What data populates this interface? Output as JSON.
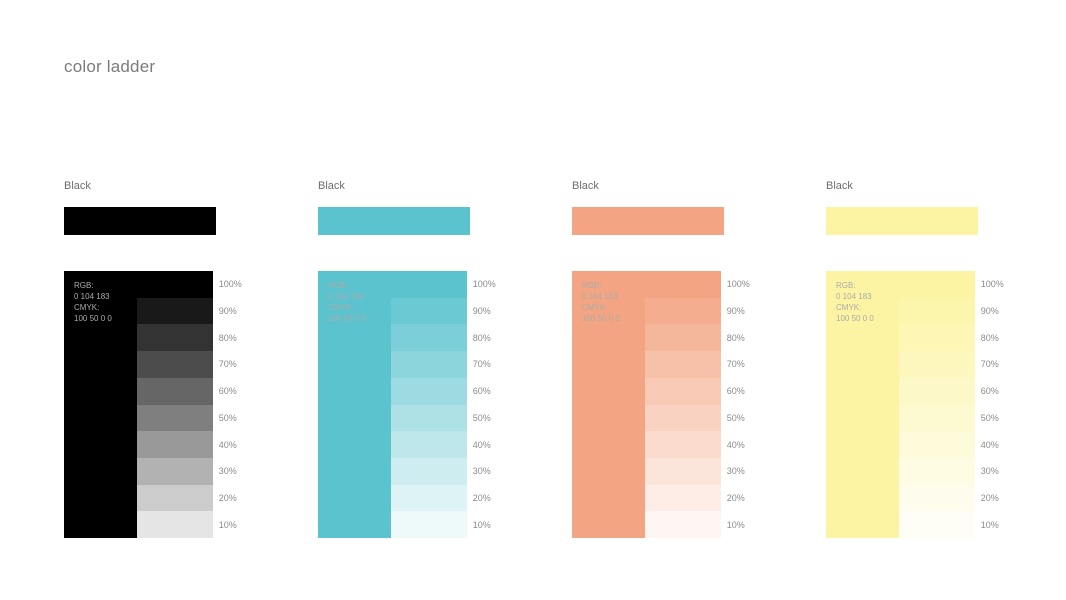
{
  "page": {
    "title": "color ladder",
    "background": "#ffffff"
  },
  "swatch_info": {
    "rgb_label": "RGB:",
    "rgb_value": "0 104 183",
    "cmyk_label": "CMYK:",
    "cmyk_value": "100 50 0 0"
  },
  "ladder": {
    "percents": [
      100,
      90,
      80,
      70,
      60,
      50,
      40,
      30,
      20,
      10
    ],
    "percent_labels": [
      "100%",
      "90%",
      "80%",
      "70%",
      "60%",
      "50%",
      "40%",
      "30%",
      "20%",
      "10%"
    ]
  },
  "columns": [
    {
      "label": "Black",
      "color": "#000000"
    },
    {
      "label": "Black",
      "color": "#5bc3ce"
    },
    {
      "label": "Black",
      "color": "#f3a583"
    },
    {
      "label": "Black",
      "color": "#fcf4a3"
    }
  ],
  "text_colors": {
    "title": "#7b7b7b",
    "column_label": "#6e6e6e",
    "percent_label": "#8c8c8c",
    "overlay_text": "#ababab"
  }
}
